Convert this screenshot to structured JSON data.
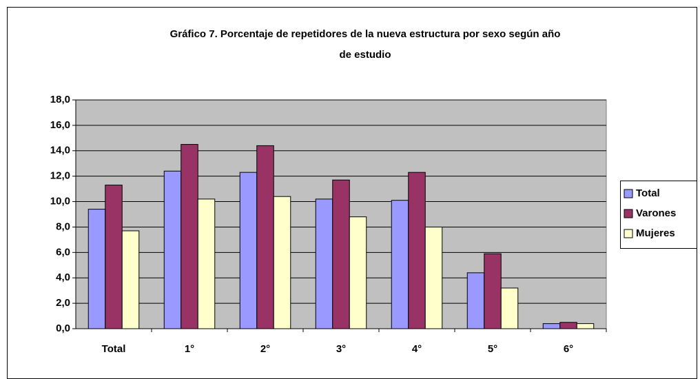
{
  "chart_data": {
    "type": "bar",
    "title": [
      "Gráfico 7. Porcentaje de repetidores de la nueva estructura por sexo según año",
      "de estudio"
    ],
    "categories": [
      "Total",
      "1°",
      "2°",
      "3°",
      "4°",
      "5°",
      "6°"
    ],
    "series": [
      {
        "name": "Total",
        "color": "#9999ff",
        "values": [
          9.4,
          12.4,
          12.3,
          10.2,
          10.1,
          4.4,
          0.4
        ]
      },
      {
        "name": "Varones",
        "color": "#993366",
        "values": [
          11.3,
          14.5,
          14.4,
          11.7,
          12.3,
          5.9,
          0.5
        ]
      },
      {
        "name": "Mujeres",
        "color": "#ffffcc",
        "values": [
          7.7,
          10.2,
          10.4,
          8.8,
          8.0,
          3.2,
          0.4
        ]
      }
    ],
    "ylim": [
      0,
      18
    ],
    "yticks": [
      {
        "value": 0,
        "label": "0,0"
      },
      {
        "value": 2,
        "label": "2,0"
      },
      {
        "value": 4,
        "label": "4,0"
      },
      {
        "value": 6,
        "label": "6,0"
      },
      {
        "value": 8,
        "label": "8,0"
      },
      {
        "value": 10,
        "label": "10,0"
      },
      {
        "value": 12,
        "label": "12,0"
      },
      {
        "value": 14,
        "label": "14,0"
      },
      {
        "value": 16,
        "label": "16,0"
      },
      {
        "value": 18,
        "label": "18,0"
      }
    ],
    "grid": true,
    "legend": "right",
    "plot_background": "#c0c0c0"
  }
}
